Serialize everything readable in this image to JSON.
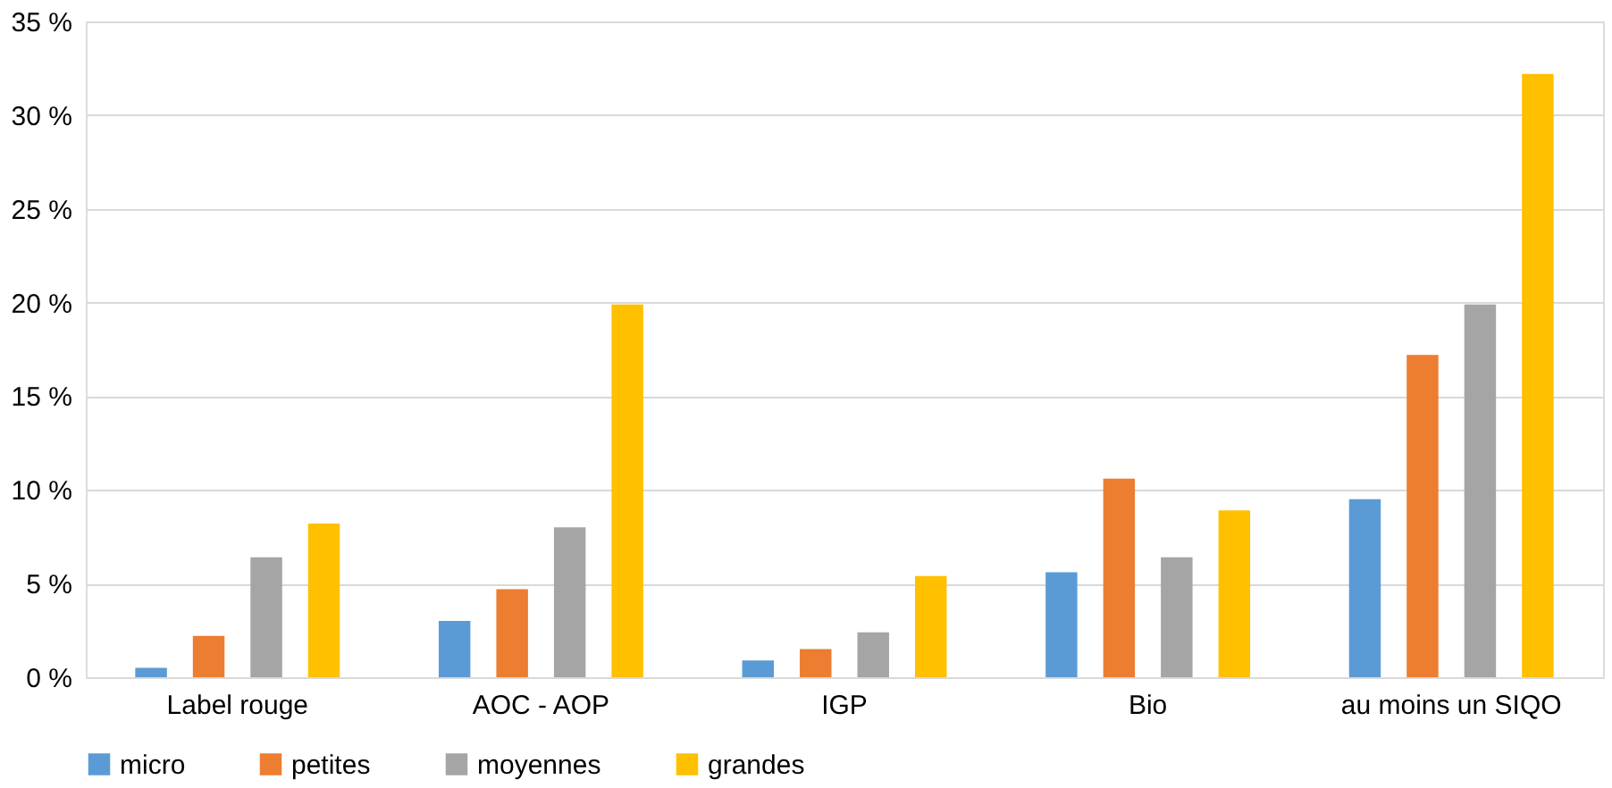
{
  "chart_data": {
    "type": "bar",
    "categories": [
      "Label rouge",
      "AOC - AOP",
      "IGP",
      "Bio",
      "au moins un SIQO"
    ],
    "series": [
      {
        "name": "micro",
        "color": "#5b9bd5",
        "values": [
          0.5,
          3.0,
          0.9,
          5.6,
          9.5
        ]
      },
      {
        "name": "petites",
        "color": "#ed7d31",
        "values": [
          2.2,
          4.7,
          1.5,
          10.6,
          17.2
        ]
      },
      {
        "name": "moyennes",
        "color": "#a5a5a5",
        "values": [
          6.4,
          8.0,
          2.4,
          6.4,
          19.9
        ]
      },
      {
        "name": "grandes",
        "color": "#ffc000",
        "values": [
          8.2,
          19.9,
          5.4,
          8.9,
          32.2
        ]
      }
    ],
    "ylim": [
      0,
      35
    ],
    "yticks": [
      {
        "value": 0,
        "label": "0 %"
      },
      {
        "value": 5,
        "label": "5 %"
      },
      {
        "value": 10,
        "label": "10 %"
      },
      {
        "value": 15,
        "label": "15 %"
      },
      {
        "value": 20,
        "label": "20 %"
      },
      {
        "value": 25,
        "label": "25 %"
      },
      {
        "value": 30,
        "label": "30 %"
      },
      {
        "value": 35,
        "label": "35 %"
      }
    ],
    "grid": "y",
    "legend": "bottom"
  }
}
